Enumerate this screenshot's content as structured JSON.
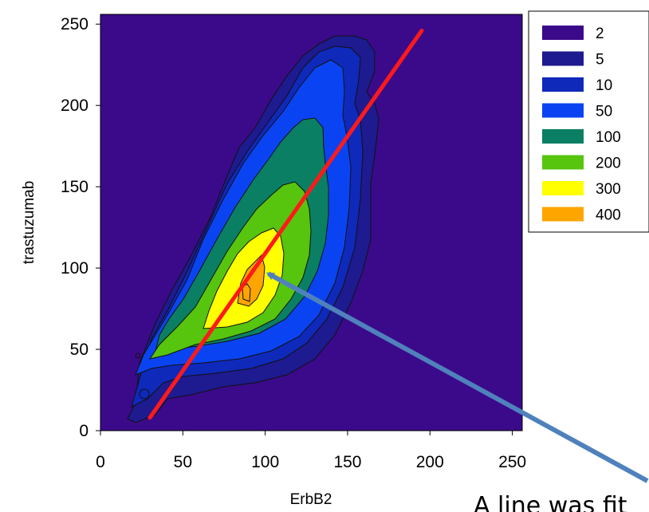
{
  "chart_data": {
    "type": "contour",
    "xlabel": "ErbB2",
    "ylabel": "trastuzumab",
    "xlim": [
      0,
      256
    ],
    "ylim": [
      0,
      256
    ],
    "xticks": [
      "0",
      "50",
      "100",
      "150",
      "200",
      "250"
    ],
    "yticks": [
      "0",
      "50",
      "100",
      "150",
      "200",
      "250"
    ],
    "background_color": "#3b0a8a",
    "levels": [
      {
        "label": "2",
        "value": 2,
        "color": "#3b0a8a"
      },
      {
        "label": "5",
        "value": 5,
        "color": "#1e1a8f"
      },
      {
        "label": "10",
        "value": 10,
        "color": "#0f29bb"
      },
      {
        "label": "50",
        "value": 50,
        "color": "#0a44f2"
      },
      {
        "label": "100",
        "value": 100,
        "color": "#0a7f63"
      },
      {
        "label": "200",
        "value": 200,
        "color": "#57c40e"
      },
      {
        "label": "300",
        "value": 300,
        "color": "#ffff00"
      },
      {
        "label": "400",
        "value": 400,
        "color": "#ffa500"
      }
    ],
    "fit_line": {
      "color": "#ff1a1a",
      "points": [
        [
          30,
          8
        ],
        [
          195,
          246
        ]
      ]
    },
    "legend_position": "top-right",
    "annotation": {
      "text": "A line was fit",
      "arrow_color": "#4f81bd",
      "arrow_to": [
        98,
        99
      ]
    }
  }
}
